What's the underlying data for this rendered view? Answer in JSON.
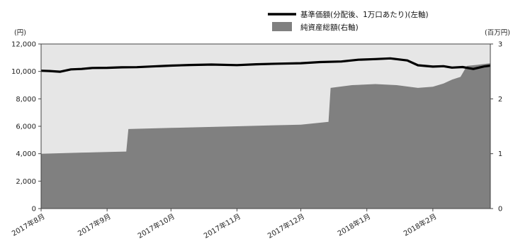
{
  "chart_data": {
    "type": "line",
    "left_unit": "(円)",
    "right_unit": "(百万円)",
    "left_ylim": [
      0,
      12000
    ],
    "right_ylim": [
      0,
      3
    ],
    "left_ticks": [
      0,
      2000,
      4000,
      6000,
      8000,
      10000,
      12000
    ],
    "left_tick_labels": [
      "0",
      "2,000",
      "4,000",
      "6,000",
      "8,000",
      "10,000",
      "12,000"
    ],
    "right_ticks": [
      0,
      1,
      2,
      3
    ],
    "right_tick_labels": [
      "0",
      "1",
      "2",
      "3"
    ],
    "x_start": "2017-08-01",
    "x_end": "2018-02-28",
    "x_ticks": [
      "2017-08-01",
      "2017-09-01",
      "2017-10-01",
      "2017-11-01",
      "2017-12-01",
      "2018-01-01",
      "2018-02-01"
    ],
    "x_tick_labels": [
      "2017年8月",
      "2017年9月",
      "2017年10月",
      "2017年11月",
      "2017年12月",
      "2018年1月",
      "2018年2月"
    ],
    "grid": false,
    "legend_position": "top-right",
    "series": [
      {
        "name": "基準価額(分配後、1万口あたり)(左軸)",
        "type": "line",
        "axis": "left",
        "color": "#000000",
        "points": [
          [
            "2017-08-01",
            10050
          ],
          [
            "2017-08-05",
            10030
          ],
          [
            "2017-08-10",
            9980
          ],
          [
            "2017-08-15",
            10150
          ],
          [
            "2017-08-20",
            10180
          ],
          [
            "2017-08-25",
            10250
          ],
          [
            "2017-09-01",
            10260
          ],
          [
            "2017-09-08",
            10300
          ],
          [
            "2017-09-15",
            10310
          ],
          [
            "2017-09-22",
            10360
          ],
          [
            "2017-10-01",
            10420
          ],
          [
            "2017-10-10",
            10470
          ],
          [
            "2017-10-20",
            10500
          ],
          [
            "2017-11-01",
            10460
          ],
          [
            "2017-11-10",
            10520
          ],
          [
            "2017-11-20",
            10560
          ],
          [
            "2017-12-01",
            10600
          ],
          [
            "2017-12-10",
            10680
          ],
          [
            "2017-12-20",
            10720
          ],
          [
            "2017-12-28",
            10850
          ],
          [
            "2018-01-05",
            10900
          ],
          [
            "2018-01-12",
            10950
          ],
          [
            "2018-01-20",
            10800
          ],
          [
            "2018-01-25",
            10450
          ],
          [
            "2018-02-01",
            10350
          ],
          [
            "2018-02-06",
            10380
          ],
          [
            "2018-02-10",
            10280
          ],
          [
            "2018-02-15",
            10320
          ],
          [
            "2018-02-20",
            10180
          ],
          [
            "2018-02-25",
            10360
          ],
          [
            "2018-02-28",
            10420
          ]
        ]
      },
      {
        "name": "純資産総額(右軸)",
        "type": "area",
        "axis": "right",
        "color": "#808080",
        "points": [
          [
            "2017-08-01",
            1.0
          ],
          [
            "2017-08-20",
            1.02
          ],
          [
            "2017-09-01",
            1.03
          ],
          [
            "2017-09-10",
            1.04
          ],
          [
            "2017-09-11",
            1.45
          ],
          [
            "2017-10-01",
            1.47
          ],
          [
            "2017-11-01",
            1.5
          ],
          [
            "2017-12-01",
            1.53
          ],
          [
            "2017-12-14",
            1.58
          ],
          [
            "2017-12-15",
            2.2
          ],
          [
            "2017-12-25",
            2.25
          ],
          [
            "2018-01-05",
            2.27
          ],
          [
            "2018-01-15",
            2.25
          ],
          [
            "2018-01-25",
            2.2
          ],
          [
            "2018-02-01",
            2.22
          ],
          [
            "2018-02-06",
            2.28
          ],
          [
            "2018-02-10",
            2.35
          ],
          [
            "2018-02-14",
            2.4
          ],
          [
            "2018-02-17",
            2.6
          ],
          [
            "2018-02-22",
            2.62
          ],
          [
            "2018-02-28",
            2.65
          ]
        ]
      }
    ]
  }
}
